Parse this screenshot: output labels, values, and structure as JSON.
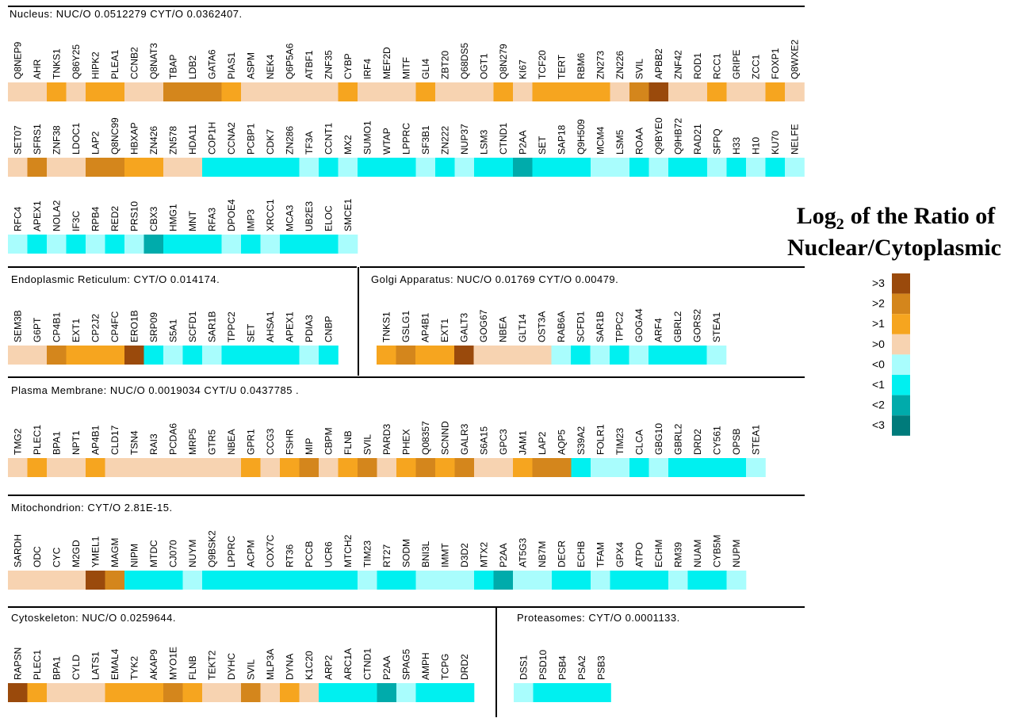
{
  "legend": {
    "title": {
      "base": "Log",
      "subscript": "2",
      "rest": "of the Ratio of",
      "line2": "Nuclear/Cytoplasmic"
    },
    "levels": [
      {
        "label": ">3",
        "color": "#9a4a0c"
      },
      {
        "label": ">2",
        "color": "#d4861c"
      },
      {
        "label": ">1",
        "color": "#f6a51f"
      },
      {
        "label": ">0",
        "color": "#f7d3b1"
      },
      {
        "label": "<0",
        "color": "#a9fdfd"
      },
      {
        "label": "<1",
        "color": "#00f0f0"
      },
      {
        "label": "<2",
        "color": "#00abab"
      },
      {
        "label": "<3",
        "color": "#007b7b"
      }
    ]
  },
  "sections": [
    {
      "title": "Nucleus: NUC/O 0.0512279 CYT/O 0.0362407.",
      "rows": [
        {
          "genes": [
            "Q8NEP9",
            "AHR",
            "TNKS1",
            "Q86Y25",
            "HIPK2",
            "PLEA1",
            "CCNB2",
            "Q8NAT3",
            "TBAP",
            "LDB2",
            "GATA6",
            "PIAS1",
            "ASPM",
            "NEK4",
            "Q6P5A6",
            "ATBF1",
            "ZNF35",
            "CYBP",
            "IRF4",
            "MEF2D",
            "MITF",
            "GLI4",
            "ZBT20",
            "Q68DS5",
            "OGT1",
            "Q8N279",
            "KI67",
            "TCF20",
            "TERT",
            "RBM6",
            "ZN273",
            "ZN226",
            "SVIL",
            "APBB2",
            "ZNF42",
            "ROD1",
            "RCC1",
            "GRIPE",
            "ZCC1",
            "FOXP1",
            "Q8WXE2"
          ],
          "levels": [
            ">0",
            ">0",
            ">1",
            ">0",
            ">1",
            ">1",
            ">0",
            ">0",
            ">2",
            ">2",
            ">2",
            ">1",
            ">0",
            ">0",
            ">0",
            ">0",
            ">0",
            ">1",
            ">0",
            ">0",
            ">0",
            ">1",
            ">0",
            ">0",
            ">0",
            ">1",
            ">0",
            ">1",
            ">1",
            ">1",
            ">1",
            ">0",
            ">2",
            ">3",
            ">0",
            ">0",
            ">1",
            ">0",
            ">0",
            ">1",
            ">0"
          ]
        },
        {
          "genes": [
            "SET07",
            "SFRS1",
            "ZNF38",
            "LDOC1",
            "LAP2",
            "Q8NC99",
            "HBXAP",
            "ZN426",
            "ZN578",
            "HDA11",
            "COP1H",
            "CCNA2",
            "PCBP1",
            "CDK7",
            "ZN286",
            "TF3A",
            "CCNT1",
            "MX2",
            "SUMO1",
            "WTAP",
            "LPPRC",
            "SF3B1",
            "ZN222",
            "NUP37",
            "LSM3",
            "CTND1",
            "P2AA",
            "SET",
            "SAP18",
            "Q9H509",
            "MCM4",
            "LSM5",
            "ROAA",
            "Q9BYE0",
            "Q9HB72",
            "RAD21",
            "SFPQ",
            "H33",
            "H10",
            "KU70",
            "NELFE"
          ],
          "levels": [
            ">0",
            ">2",
            ">0",
            ">0",
            ">2",
            ">2",
            ">1",
            ">1",
            ">0",
            ">0",
            "<1",
            "<1",
            "<1",
            "<1",
            "<1",
            "<0",
            "<1",
            "<0",
            "<1",
            "<1",
            "<1",
            "<0",
            "<1",
            "<0",
            "<1",
            "<1",
            "<2",
            "<1",
            "<1",
            "<1",
            "<0",
            "<0",
            "<1",
            "<0",
            "<1",
            "<1",
            "<0",
            "<1",
            "<0",
            "<1",
            "<0"
          ]
        },
        {
          "genes": [
            "RFC4",
            "APEX1",
            "NOLA2",
            "IF3C",
            "RPB4",
            "RED2",
            "PRS10",
            "CBX3",
            "HMG1",
            "MNT",
            "RFA3",
            "DPOE4",
            "IMP3",
            "XRCC1",
            "MCA3",
            "UB2E3",
            "ELOC",
            "SMCE1"
          ],
          "levels": [
            "<0",
            "<1",
            "<0",
            "<1",
            "<0",
            "<1",
            "<0",
            "<2",
            "<1",
            "<1",
            "<1",
            "<0",
            "<1",
            "<0",
            "<1",
            "<1",
            "<1",
            "<0"
          ]
        }
      ]
    },
    {
      "title": "Endoplasmic Reticulum: CYT/O  0.014174.",
      "rows": [
        {
          "genes": [
            "SEM3B",
            "G6PT",
            "CP4B1",
            "EXT1",
            "CP2J2",
            "CP4FC",
            "ERO1B",
            "SRP09",
            "S5A1",
            "SCFD1",
            "SAR1B",
            "TPPC2",
            "SET",
            "AHSA1",
            "APEX1",
            "PDIA3",
            "CNBP"
          ],
          "levels": [
            ">0",
            ">0",
            ">2",
            ">1",
            ">1",
            ">1",
            ">3",
            "<1",
            "<0",
            "<1",
            "<0",
            "<1",
            "<1",
            "<1",
            "<1",
            "<0",
            "<1"
          ]
        }
      ]
    },
    {
      "title": "Golgi Apparatus: NUC/O 0.01769 CYT/O 0.00479.",
      "rows": [
        {
          "genes": [
            "TNKS1",
            "GSLG1",
            "AP4B1",
            "EXT1",
            "GALT3",
            "GOG67",
            "NBEA",
            "GLT14",
            "OST3A",
            "RAB6A",
            "SCFD1",
            "SAR1B",
            "TPPC2",
            "GOGA4",
            "ARF4",
            "GBRL2",
            "GORS2",
            "STEA1"
          ],
          "levels": [
            ">1",
            ">2",
            ">1",
            ">1",
            ">3",
            ">0",
            ">0",
            ">0",
            ">0",
            "<0",
            "<1",
            "<0",
            "<1",
            "<0",
            "<1",
            "<1",
            "<1",
            "<0"
          ]
        }
      ]
    },
    {
      "title": "Plasma Membrane: NUC/O  0.0019034 CYT/U  0.0437785 .",
      "rows": [
        {
          "genes": [
            "TMG2",
            "PLEC1",
            "BPA1",
            "NPT1",
            "AP4B1",
            "CLD17",
            "TSN4",
            "RAI3",
            "PCDA6",
            "MRP5",
            "GTR5",
            "NBEA",
            "GPR1",
            "CCG3",
            "FSHR",
            "MIP",
            "CBPM",
            "FLNB",
            "SVIL",
            "PARD3",
            "PHEX",
            "Q08357",
            "SCNND",
            "GALR3",
            "S6A15",
            "GPC3",
            "JAM1",
            "LAP2",
            "AQP5",
            "S39A2",
            "FOLR1",
            "TIM23",
            "CLCA",
            "GBG10",
            "GBRL2",
            "DRD2",
            "CY561",
            "OPSB",
            "STEA1"
          ],
          "levels": [
            ">0",
            ">1",
            ">0",
            ">0",
            ">1",
            ">0",
            ">0",
            ">0",
            ">0",
            ">0",
            ">0",
            ">0",
            ">1",
            ">0",
            ">1",
            ">2",
            ">0",
            ">1",
            ">2",
            ">0",
            ">1",
            ">2",
            ">1",
            ">2",
            ">0",
            ">0",
            ">1",
            ">2",
            ">2",
            "<1",
            "<0",
            "<0",
            "<1",
            "<0",
            "<1",
            "<1",
            "<1",
            "<1",
            "<0"
          ]
        }
      ]
    },
    {
      "title": "Mitochondrion: CYT/O 2.81E-15.",
      "rows": [
        {
          "genes": [
            "SARDH",
            "ODC",
            "CYC",
            "M2GD",
            "YMEL1",
            "MAGM",
            "NIPM",
            "MTDC",
            "CJ070",
            "NUYM",
            "Q9BSK2",
            "LPPRC",
            "ACPM",
            "COX7C",
            "RT36",
            "PCCB",
            "UCR6",
            "MTCH2",
            "TIM23",
            "RT27",
            "SODM",
            "BNI3L",
            "IMMT",
            "D3D2",
            "MTX2",
            "P2AA",
            "AT5G3",
            "NB7M",
            "DECR",
            "ECHB",
            "TFAM",
            "GPX4",
            "ATPO",
            "ECHM",
            "RM39",
            "NUAM",
            "CYB5M",
            "NUPM"
          ],
          "levels": [
            ">0",
            ">0",
            ">0",
            ">0",
            ">3",
            ">2",
            "<1",
            "<1",
            "<1",
            "<0",
            "<1",
            "<1",
            "<1",
            "<1",
            "<1",
            "<1",
            "<1",
            "<1",
            "<0",
            "<1",
            "<1",
            "<0",
            "<0",
            "<0",
            "<1",
            "<2",
            "<0",
            "<0",
            "<1",
            "<1",
            "<0",
            "<1",
            "<1",
            "<1",
            "<0",
            "<1",
            "<1",
            "<0"
          ]
        }
      ]
    },
    {
      "title": "Cytoskeleton: NUC/O 0.0259644.",
      "rows": [
        {
          "genes": [
            "RAPSN",
            "PLEC1",
            "BPA1",
            "CYLD",
            "LATS1",
            "EMAL4",
            "TYK2",
            "AKAP9",
            "MYO1E",
            "FLNB",
            "TEKT2",
            "DYHC",
            "SVIL",
            "MLP3A",
            "DYNA",
            "K1C20",
            "ARP2",
            "ARC1A",
            "CTND1",
            "P2AA",
            "SPAG5",
            "AMPH",
            "TCPG",
            "DRD2"
          ],
          "levels": [
            ">3",
            ">1",
            ">0",
            ">0",
            ">0",
            ">1",
            ">1",
            ">1",
            ">2",
            ">1",
            ">0",
            ">0",
            ">2",
            ">0",
            ">1",
            ">0",
            "<1",
            "<1",
            "<1",
            "<2",
            "<0",
            "<1",
            "<1",
            "<1"
          ]
        }
      ]
    },
    {
      "title": "Proteasomes: CYT/O 0.0001133.",
      "rows": [
        {
          "genes": [
            "DSS1",
            "PSD10",
            "PSB4",
            "PSA2",
            "PSB3"
          ],
          "levels": [
            "<0",
            "<1",
            "<1",
            "<1",
            "<1"
          ]
        }
      ]
    }
  ]
}
